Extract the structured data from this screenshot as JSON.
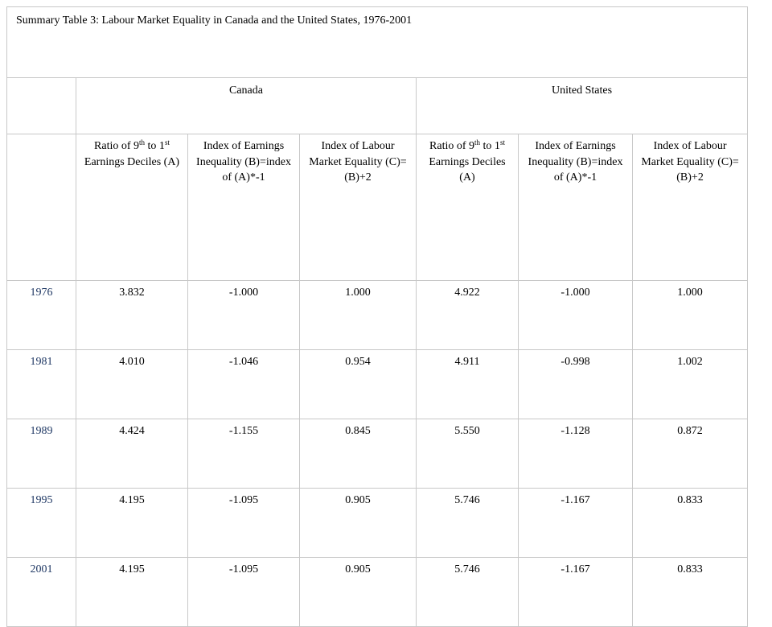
{
  "table": {
    "title": "Summary Table 3: Labour Market Equality in Canada and the United States, 1976-2001",
    "groups": [
      "Canada",
      "United States"
    ],
    "columns": [
      {
        "pre": "Ratio of 9",
        "sup1": "th",
        "mid": " to 1",
        "sup2": "st",
        "post": " Earnings Deciles (A)"
      },
      {
        "pre": "Index of Earnings Inequality (B)=index of (A)*-1"
      },
      {
        "pre": "Index of Labour Market Equality (C)=(B)+2"
      },
      {
        "pre": "Ratio of 9",
        "sup1": "th",
        "mid": " to 1",
        "sup2": "st",
        "post": " Earnings Deciles (A)"
      },
      {
        "pre": "Index of Earnings Inequality (B)=index of (A)*-1"
      },
      {
        "pre": "Index of Labour Market Equality (C)=(B)+2"
      }
    ],
    "rows": [
      {
        "year": "1976",
        "values": [
          "3.832",
          "-1.000",
          "1.000",
          "4.922",
          "-1.000",
          "1.000"
        ]
      },
      {
        "year": "1981",
        "values": [
          "4.010",
          "-1.046",
          "0.954",
          "4.911",
          "-0.998",
          "1.002"
        ]
      },
      {
        "year": "1989",
        "values": [
          "4.424",
          "-1.155",
          "0.845",
          "5.550",
          "-1.128",
          "0.872"
        ]
      },
      {
        "year": "1995",
        "values": [
          "4.195",
          "-1.095",
          "0.905",
          "5.746",
          "-1.167",
          "0.833"
        ]
      },
      {
        "year": "2001",
        "values": [
          "4.195",
          "-1.095",
          "0.905",
          "5.746",
          "-1.167",
          "0.833"
        ]
      }
    ]
  }
}
